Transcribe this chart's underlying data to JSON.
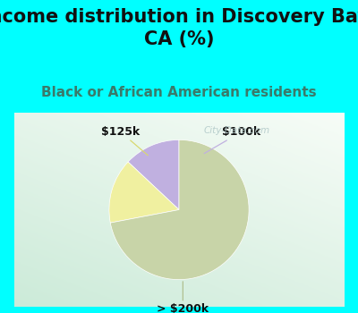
{
  "title": "Income distribution in Discovery Bay,\nCA (%)",
  "subtitle": "Black or African American residents",
  "slices": [
    {
      "label": "$100k",
      "value": 13,
      "color": "#c0b0e0"
    },
    {
      "label": "$125k",
      "value": 15,
      "color": "#f0f0a0"
    },
    {
      "label": "> $200k",
      "value": 72,
      "color": "#c8d4a8"
    }
  ],
  "startangle": 90,
  "bg_cyan": "#00ffff",
  "title_fontsize": 15,
  "subtitle_fontsize": 11,
  "subtitle_color": "#3a7a6a",
  "title_color": "#111111",
  "watermark": "City-Data.com",
  "watermark_color": "#b0c8c8",
  "label_fontsize": 9,
  "label_color": "#111111",
  "line_color_100k": "#c0b0e0",
  "line_color_125k": "#d8d870",
  "line_color_200k": "#b0c090"
}
